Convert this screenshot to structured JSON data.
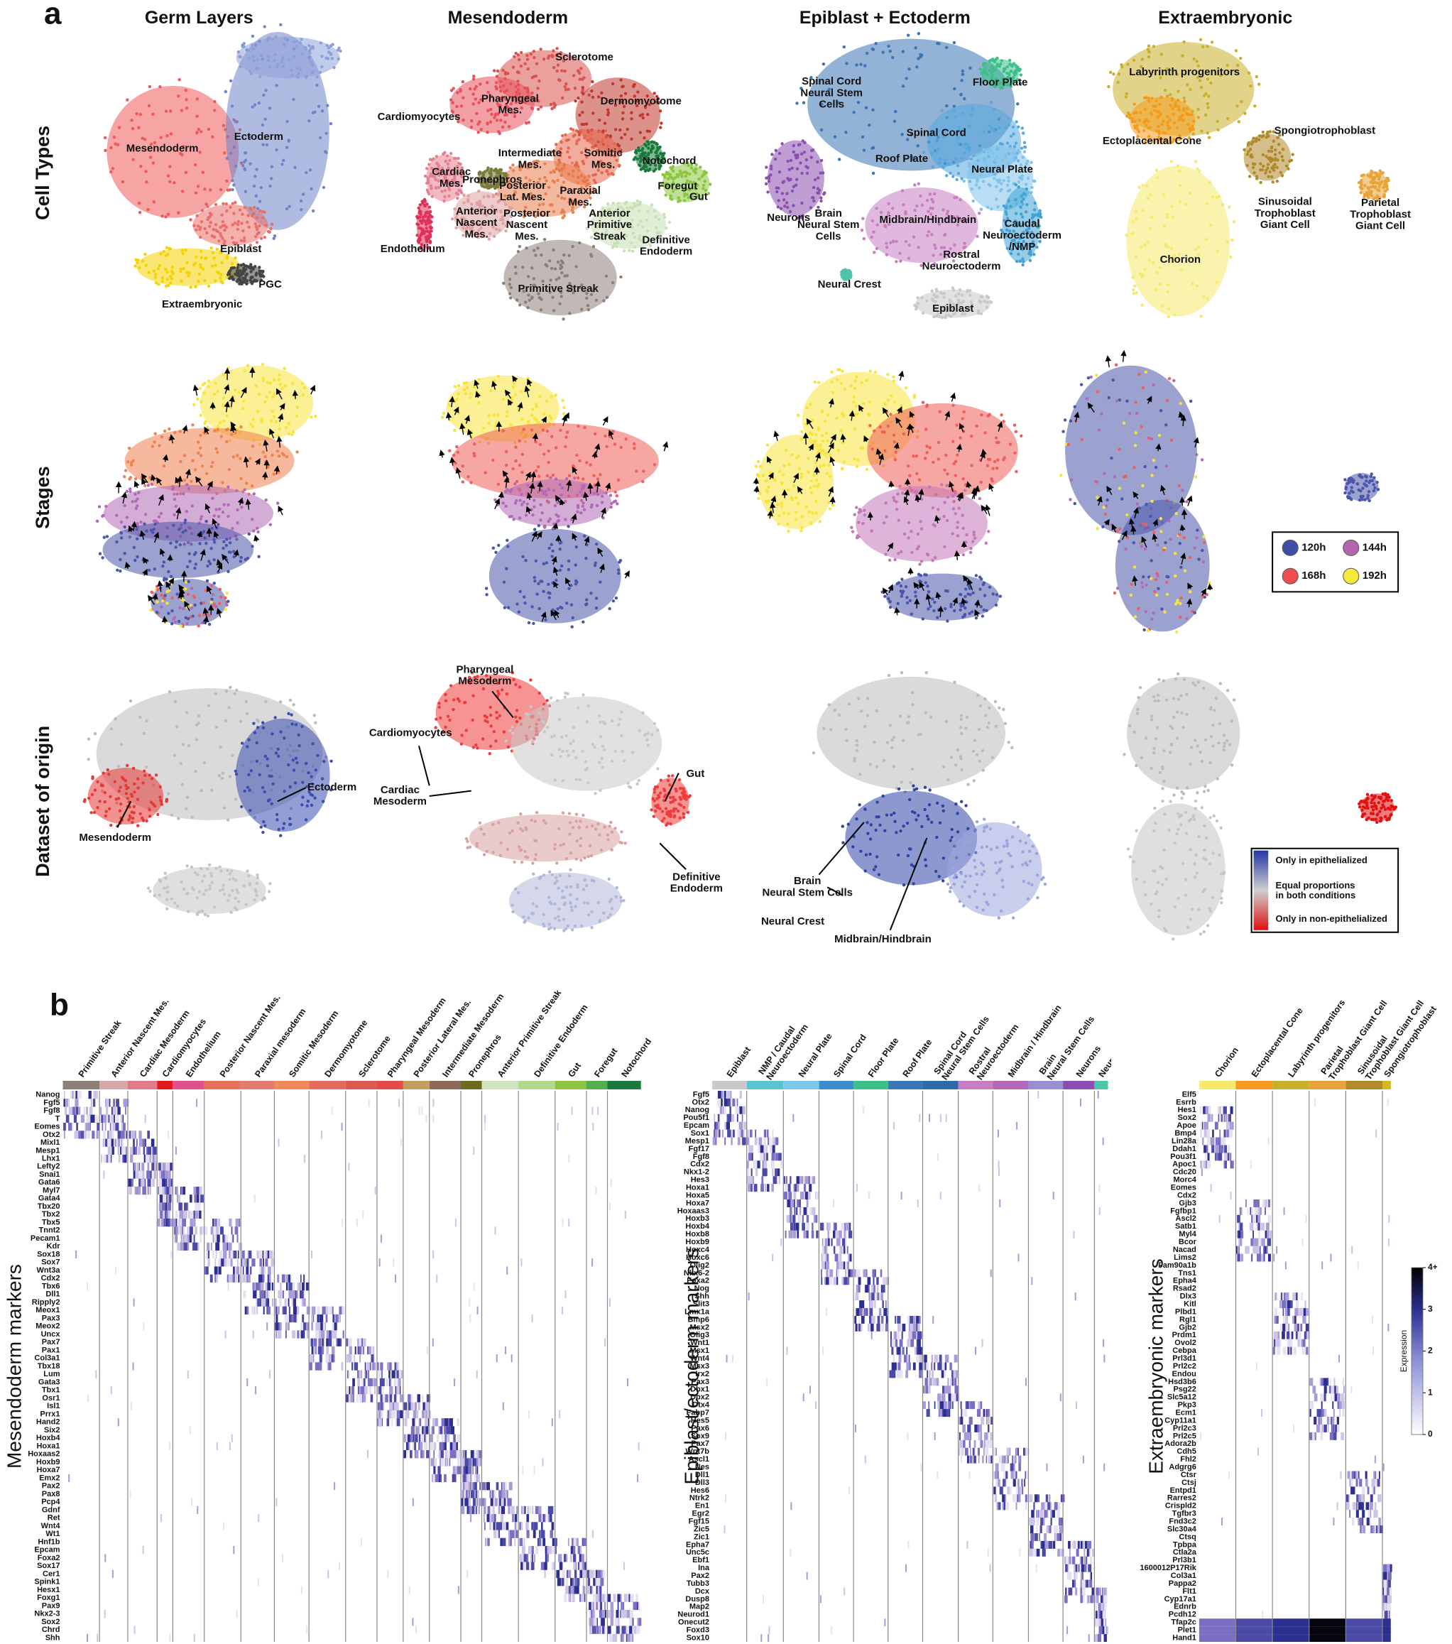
{
  "panel_a": {
    "label": "a",
    "columns": [
      "Germ Layers",
      "Mesendoderm",
      "Epiblast + Ectoderm",
      "Extraembryonic"
    ],
    "rows": [
      "Cell Types",
      "Stages",
      "Dataset of origin"
    ],
    "cell_types": {
      "germ_layers": [
        [
          "Mesendoderm"
        ],
        [
          "Ectoderm"
        ],
        [
          "Epiblast"
        ],
        [
          "PGC"
        ],
        [
          "Extraembryonic"
        ]
      ],
      "mesendoderm": [
        [
          "Sclerotome"
        ],
        [
          "Pharyngeal",
          "Mes."
        ],
        [
          "Dermomyotome"
        ],
        [
          "Cardiomyocytes"
        ],
        [
          "Intermediate",
          "Mes."
        ],
        [
          "Somitic",
          "Mes."
        ],
        [
          "Pronephros"
        ],
        [
          "Notochord"
        ],
        [
          "Cardiac",
          "Mes."
        ],
        [
          "Posterior",
          "Lat. Mes."
        ],
        [
          "Paraxial",
          "Mes."
        ],
        [
          "Foregut"
        ],
        [
          "Gut"
        ],
        [
          "Anterior",
          "Nascent",
          "Mes."
        ],
        [
          "Posterior",
          "Nascent",
          "Mes."
        ],
        [
          "Anterior",
          "Primitive",
          "Streak"
        ],
        [
          "Definitive",
          "Endoderm"
        ],
        [
          "Endothelium"
        ],
        [
          "Primitive Streak"
        ]
      ],
      "epiblast_ectoderm": [
        [
          "Spinal Cord",
          "Neural Stem",
          "Cells"
        ],
        [
          "Floor Plate"
        ],
        [
          "Spinal Cord"
        ],
        [
          "Roof Plate"
        ],
        [
          "Neural Plate"
        ],
        [
          "Neurons"
        ],
        [
          "Brain",
          "Neural Stem",
          "Cells"
        ],
        [
          "Midbrain/Hindbrain"
        ],
        [
          "Caudal",
          "Neuroectoderm",
          "/NMP"
        ],
        [
          "Rostral",
          "Neuroectoderm"
        ],
        [
          "Neural Crest"
        ],
        [
          "Epiblast"
        ]
      ],
      "extraembryonic": [
        [
          "Labyrinth progenitors"
        ],
        [
          "Spongiotrophoblast"
        ],
        [
          "Ectoplacental Cone"
        ],
        [
          "Sinusoidal",
          "Trophoblast",
          "Giant Cell"
        ],
        [
          "Parietal",
          "Trophoblast",
          "Giant Cell"
        ],
        [
          "Chorion"
        ]
      ]
    },
    "stages_legend": [
      "120h",
      "144h",
      "168h",
      "192h"
    ],
    "dataset_of_origin": {
      "germ_layers": [
        [
          "Mesendoderm"
        ],
        [
          "Ectoderm"
        ]
      ],
      "mesendoderm": [
        [
          "Pharyngeal",
          "Mesoderm"
        ],
        [
          "Cardiomyocytes"
        ],
        [
          "Cardiac",
          "Mesoderm"
        ],
        [
          "Gut"
        ],
        [
          "Definitive",
          "Endoderm"
        ]
      ],
      "epiblast_ectoderm": [
        [
          "Brain",
          "Neural Stem Cells"
        ],
        [
          "Neural Crest"
        ],
        [
          "Midbrain/Hindbrain"
        ]
      ]
    },
    "dataset_legend": [
      [
        "Only in epithelialized"
      ],
      [
        "Equal proportions",
        "in both conditions"
      ],
      [
        "Only in non-epithelialized"
      ]
    ]
  },
  "panel_b": {
    "label": "b",
    "heatmaps": [
      {
        "title": "Mesendoderm markers",
        "columns": [
          [
            "Primitive Streak"
          ],
          [
            "Anterior Nascent Mes."
          ],
          [
            "Cardiac Mesoderm"
          ],
          [
            "Cardiomyocytes"
          ],
          [
            "Endothelium"
          ],
          [
            "Posterior Nascent Mes."
          ],
          [
            "Paraxial mesoderm"
          ],
          [
            "Somitic Mesoderm"
          ],
          [
            "Dermomyotome"
          ],
          [
            "Sclerotome"
          ],
          [
            "Pharyngeal Mesoderm"
          ],
          [
            "Posterior Lateral Mes."
          ],
          [
            "Intermediate Mesoderm"
          ],
          [
            "Pronephros"
          ],
          [
            "Anterior Primitive Streak"
          ],
          [
            "Definitive Endoderm"
          ],
          [
            "Gut"
          ],
          [
            "Foregut"
          ],
          [
            "Notochord"
          ]
        ],
        "genes": [
          "Nanog",
          "Fgf5",
          "Fgf8",
          "T",
          "Eomes",
          "Otx2",
          "Mixl1",
          "Mesp1",
          "Lhx1",
          "Lefty2",
          "Snai1",
          "Gata6",
          "Myl7",
          "Gata4",
          "Tbx20",
          "Tbx2",
          "Tbx5",
          "Tnnt2",
          "Pecam1",
          "Kdr",
          "Sox18",
          "Sox7",
          "Wnt3a",
          "Cdx2",
          "Tbx6",
          "Dll1",
          "Ripply2",
          "Meox1",
          "Pax3",
          "Meox2",
          "Uncx",
          "Pax7",
          "Pax1",
          "Col3a1",
          "Tbx18",
          "Lum",
          "Gata3",
          "Tbx1",
          "Osr1",
          "Isl1",
          "Prrx1",
          "Hand2",
          "Six2",
          "Hoxb4",
          "Hoxa1",
          "Hoxaas2",
          "Hoxb9",
          "Hoxa7",
          "Emx2",
          "Pax2",
          "Pax8",
          "Pcp4",
          "Gdnf",
          "Ret",
          "Wnt4",
          "Wt1",
          "Hnf1b",
          "Epcam",
          "Foxa2",
          "Sox17",
          "Cer1",
          "Spink1",
          "Hesx1",
          "Foxg1",
          "Pax9",
          "Nkx2-3",
          "Sox2",
          "Chrd",
          "Shh"
        ]
      },
      {
        "title": "Epiblast/ectoderm markers",
        "columns": [
          [
            "Epiblast"
          ],
          [
            "NMP / Caudal",
            "Neuroectoderm"
          ],
          [
            "Neural Plate"
          ],
          [
            "Spinal Cord"
          ],
          [
            "Floor Plate"
          ],
          [
            "Roof Plate"
          ],
          [
            "Spinal Cord",
            "Neural Stem Cells"
          ],
          [
            "Rostral",
            "Neuroectoderm"
          ],
          [
            "Midbrain / Hindbrain"
          ],
          [
            "Brain",
            "Neural Stem Cells"
          ],
          [
            "Neurons"
          ],
          [
            "Neural Crest"
          ]
        ],
        "genes": [
          "Fgf5",
          "Otx2",
          "Nanog",
          "Pou5f1",
          "Epcam",
          "Sox1",
          "Mesp1",
          "Fgf17",
          "Fgf8",
          "Cdx2",
          "Nkx1-2",
          "Hes3",
          "Hoxa1",
          "Hoxa5",
          "Hoxa7",
          "Hoxaas3",
          "Hoxb3",
          "Hoxb4",
          "Hoxb8",
          "Hoxb9",
          "Hoxc4",
          "Hoxc6",
          "Olig2",
          "Nkx6-2",
          "Foxa2",
          "Nog",
          "Shh",
          "Slit3",
          "Lmx1a",
          "Bmp6",
          "Msx2",
          "Olig3",
          "Wnt1",
          "Msx1",
          "Wnt4",
          "Msx3",
          "Irx2",
          "Pax3",
          "Dbx1",
          "Dbx2",
          "Dtx4",
          "Fabp7",
          "Hes5",
          "Pax6",
          "Sox9",
          "Pax7",
          "Wnt7b",
          "Ascl1",
          "Nes",
          "Dll1",
          "Dll3",
          "Hes6",
          "Ntrk2",
          "En1",
          "Egr2",
          "Fgf15",
          "Zic5",
          "Zic1",
          "Epha7",
          "Unc5c",
          "Ebf1",
          "Ina",
          "Pax2",
          "Tubb3",
          "Dcx",
          "Dusp8",
          "Map2",
          "Neurod1",
          "Onecut2",
          "Foxd3",
          "Sox10"
        ]
      },
      {
        "title": "Extraembryonic markers",
        "columns": [
          [
            "Chorion"
          ],
          [
            "Ectoplacental Cone"
          ],
          [
            "Labyrinth progenitors"
          ],
          [
            "Parietal",
            "Trophoblast Giant Cell"
          ],
          [
            "Sinusoidal",
            "Trophoblast Giant Cell"
          ],
          [
            "Spongiotrophoblast"
          ]
        ],
        "genes": [
          "Elf5",
          "Esrrb",
          "Hes1",
          "Sox2",
          "Apoe",
          "Bmp4",
          "Lin28a",
          "Ddah1",
          "Pou3f1",
          "Apoc1",
          "Cdc20",
          "Morc4",
          "Eomes",
          "Cdx2",
          "Gjb3",
          "Fgfbp1",
          "Ascl2",
          "Satb1",
          "Myl4",
          "Bcor",
          "Nacad",
          "Lims2",
          "Fam90a1b",
          "Tns1",
          "Epha4",
          "Rsad2",
          "Dlx3",
          "Kitl",
          "Plbd1",
          "Rgl1",
          "Gjb2",
          "Prdm1",
          "Ovol2",
          "Cebpa",
          "Prl3d1",
          "Prl2c2",
          "Endou",
          "Hsd3b6",
          "Psg22",
          "Slc5a12",
          "Pkp3",
          "Ecm1",
          "Cyp11a1",
          "Prl2c3",
          "Prl2c5",
          "Adora2b",
          "Cdh5",
          "Fhl2",
          "Adgrg6",
          "Ctsr",
          "Ctsj",
          "Entpd1",
          "Rarres2",
          "Crispld2",
          "Tgfbr3",
          "Fnd3c2",
          "Slc30a4",
          "Ctsq",
          "Tpbpa",
          "Ctla2a",
          "Prl3b1",
          "1600012P17Rik",
          "Col3a1",
          "Pappa2",
          "Flt1",
          "Cyp17a1",
          "Ednrb",
          "Pcdh12",
          "Tfap2c",
          "Plet1",
          "Hand1"
        ]
      }
    ],
    "colorbar": {
      "title": "Expression",
      "ticks": [
        "4+",
        "3",
        "2",
        "1",
        "0"
      ]
    }
  }
}
